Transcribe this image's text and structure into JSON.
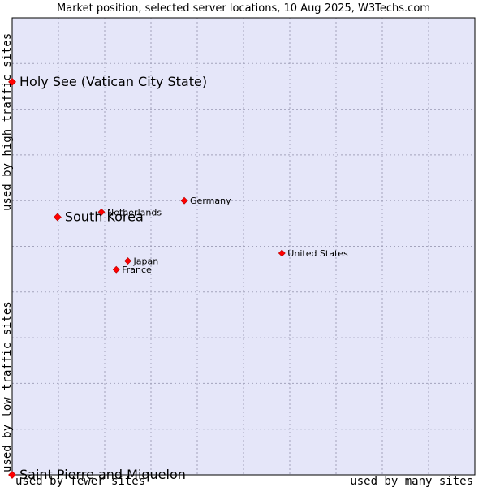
{
  "chart_data": {
    "type": "scatter",
    "title": "Market position, selected server locations, 10 Aug 2025, W3Techs.com",
    "xlabel_low": "used by fewer sites",
    "xlabel_high": "used by many sites",
    "ylabel_low": "used by low traffic sites",
    "ylabel_high": "used by high traffic sites",
    "xlim": [
      0,
      10
    ],
    "ylim": [
      0,
      10
    ],
    "grid": true,
    "colors": {
      "plot_bg": "#e5e6f9",
      "grid": "#a3a3bc",
      "marker": "#ff0000",
      "marker_edge": "#b00000",
      "border": "#000000"
    },
    "points": [
      {
        "label": "Holy See (Vatican City State)",
        "x": 0.0,
        "y": 8.6,
        "size": "large"
      },
      {
        "label": "South Korea",
        "x": 0.98,
        "y": 5.64,
        "size": "large"
      },
      {
        "label": "Netherlands",
        "x": 1.93,
        "y": 5.75,
        "size": "small"
      },
      {
        "label": "Germany",
        "x": 3.72,
        "y": 6.0,
        "size": "small"
      },
      {
        "label": "United States",
        "x": 5.83,
        "y": 4.85,
        "size": "small"
      },
      {
        "label": "Japan",
        "x": 2.5,
        "y": 4.68,
        "size": "small"
      },
      {
        "label": "France",
        "x": 2.25,
        "y": 4.49,
        "size": "small"
      },
      {
        "label": "Saint Pierre and Miquelon",
        "x": 0.0,
        "y": 0.0,
        "size": "large"
      }
    ]
  }
}
